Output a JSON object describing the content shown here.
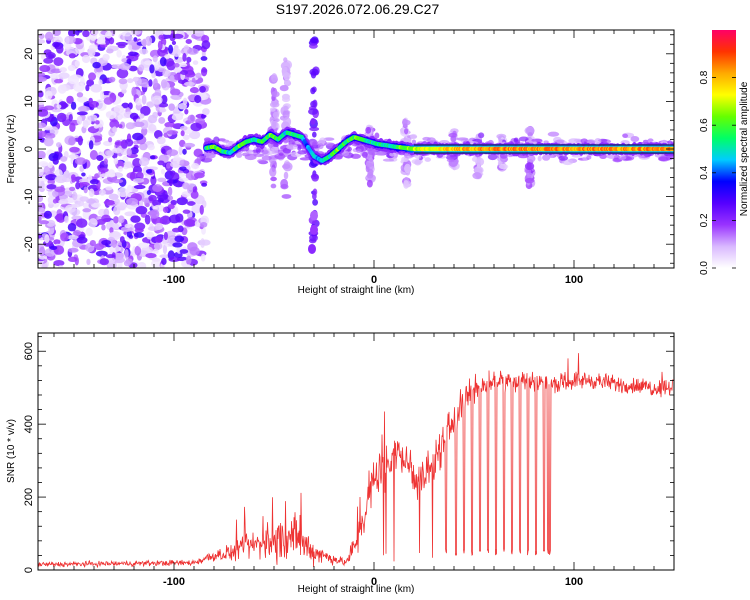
{
  "title": "S197.2026.072.06.29.C27",
  "chart_data": [
    {
      "type": "heatmap",
      "xlabel": "Height of straight line (km)",
      "ylabel": "Frequency (Hz)",
      "xlim": [
        -168,
        150
      ],
      "ylim": [
        -25,
        25
      ],
      "x_ticks": [
        -100,
        0,
        100
      ],
      "y_ticks": [
        -20,
        -10,
        0,
        10,
        20
      ],
      "colorbar": {
        "label": "Normalized spectral amplitude",
        "range": [
          0,
          1
        ],
        "ticks": [
          "0.0",
          "0.2",
          "0.4",
          "0.6",
          "0.8"
        ],
        "tick_values": [
          0.0,
          0.2,
          0.4,
          0.6,
          0.8
        ],
        "stops": [
          "#ffffff",
          "#d9b8ff",
          "#9933ff",
          "#5500ff",
          "#0000ff",
          "#00ccff",
          "#00ff66",
          "#66ff00",
          "#ffff00",
          "#ffaa00",
          "#ff3300",
          "#ff0066"
        ]
      },
      "ridge": {
        "description": "main signal ridge",
        "x": [
          -84,
          -80,
          -76,
          -72,
          -68,
          -64,
          -60,
          -56,
          -52,
          -48,
          -44,
          -40,
          -36,
          -34,
          -30,
          -26,
          -22,
          -18,
          -14,
          -10,
          -6,
          -2,
          2,
          6,
          10,
          14,
          20,
          30,
          40,
          60,
          80,
          100,
          120,
          150
        ],
        "y": [
          0.2,
          0.5,
          -0.5,
          -0.8,
          0.5,
          1.5,
          2.0,
          1.5,
          3.0,
          2.0,
          3.5,
          3.0,
          2.5,
          1.0,
          -1.5,
          -2.5,
          -1.5,
          0.0,
          1.5,
          2.5,
          2.0,
          1.5,
          1.0,
          0.8,
          0.5,
          0.3,
          0.0,
          0.0,
          0.0,
          0.0,
          0.0,
          0.0,
          0.0,
          0.0
        ],
        "amplitude": [
          0.55,
          0.6,
          0.55,
          0.5,
          0.6,
          0.55,
          0.5,
          0.55,
          0.6,
          0.55,
          0.5,
          0.55,
          0.5,
          0.4,
          0.45,
          0.5,
          0.55,
          0.6,
          0.55,
          0.6,
          0.55,
          0.5,
          0.55,
          0.5,
          0.55,
          0.6,
          0.7,
          0.75,
          0.8,
          0.85,
          0.85,
          0.85,
          0.85,
          0.85
        ]
      },
      "noise_region_x": [
        -168,
        -84
      ]
    },
    {
      "type": "line",
      "xlabel": "Height of straight line (km)",
      "ylabel": "SNR (10 * v/v)",
      "xlim": [
        -168,
        150
      ],
      "ylim": [
        0,
        650
      ],
      "x_ticks": [
        -100,
        0,
        100
      ],
      "y_ticks": [
        0,
        200,
        400,
        600
      ],
      "color": "#ee3333",
      "envelope": {
        "x": [
          -168,
          -90,
          -80,
          -70,
          -60,
          -50,
          -40,
          -30,
          -20,
          -14,
          -10,
          -5,
          0,
          5,
          10,
          15,
          20,
          25,
          30,
          35,
          40,
          45,
          50,
          60,
          70,
          80,
          90,
          100,
          110,
          120,
          130,
          140,
          150
        ],
        "mean": [
          15,
          20,
          40,
          50,
          70,
          80,
          90,
          50,
          30,
          20,
          60,
          150,
          250,
          280,
          330,
          300,
          260,
          250,
          300,
          350,
          420,
          470,
          500,
          520,
          520,
          520,
          510,
          520,
          520,
          510,
          505,
          500,
          505
        ],
        "spread": [
          10,
          12,
          25,
          35,
          60,
          80,
          100,
          50,
          20,
          15,
          60,
          80,
          80,
          80,
          90,
          80,
          80,
          80,
          80,
          80,
          80,
          60,
          50,
          45,
          45,
          40,
          35,
          35,
          35,
          35,
          35,
          35,
          35
        ]
      },
      "dropouts_x": [
        36,
        41,
        45,
        49,
        53,
        57,
        61,
        65,
        69,
        73,
        77,
        81,
        85,
        87,
        88
      ]
    }
  ]
}
